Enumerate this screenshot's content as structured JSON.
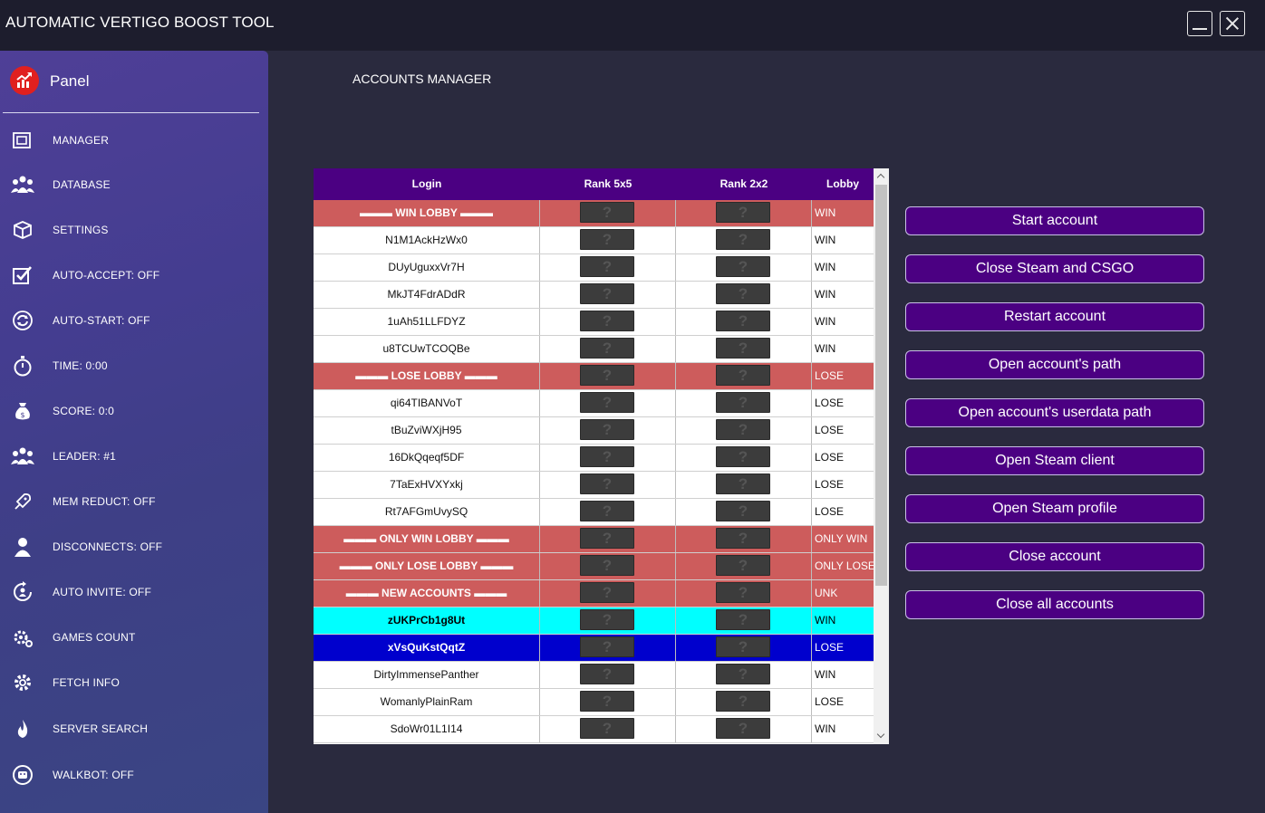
{
  "window": {
    "title": "AUTOMATIC VERTIGO BOOST TOOL",
    "minimize_icon": "minimize-icon",
    "close_icon": "close-icon"
  },
  "sidebar": {
    "panel_title": "Panel",
    "panel_icon": "chart-up-icon",
    "items": [
      {
        "label": "MANAGER",
        "icon": "windows-icon"
      },
      {
        "label": "DATABASE",
        "icon": "users-icon"
      },
      {
        "label": "SETTINGS",
        "icon": "box-icon"
      },
      {
        "label": "AUTO-ACCEPT: OFF",
        "icon": "check-square-icon"
      },
      {
        "label": "AUTO-START: OFF",
        "icon": "refresh-icon"
      },
      {
        "label": "TIME: 0:00",
        "icon": "stopwatch-icon"
      },
      {
        "label": "SCORE: 0:0",
        "icon": "money-bag-icon"
      },
      {
        "label": "LEADER: #1",
        "icon": "group-icon"
      },
      {
        "label": "MEM REDUCT: OFF",
        "icon": "rocket-icon"
      },
      {
        "label": "DISCONNECTS: OFF",
        "icon": "user-icon"
      },
      {
        "label": "AUTO INVITE: OFF",
        "icon": "invite-icon"
      },
      {
        "label": "GAMES COUNT",
        "icon": "gears-icon"
      },
      {
        "label": "FETCH INFO",
        "icon": "gear-icon"
      },
      {
        "label": "SERVER SEARCH",
        "icon": "flame-icon"
      },
      {
        "label": "WALKBOT: OFF",
        "icon": "robot-icon"
      }
    ]
  },
  "main": {
    "heading": "ACCOUNTS MANAGER"
  },
  "table": {
    "columns": [
      "Login",
      "Rank 5x5",
      "Rank 2x2",
      "Lobby"
    ],
    "rank_placeholder": "?",
    "rows": [
      {
        "login": "▬▬▬ WIN LOBBY ▬▬▬",
        "lobby": "WIN",
        "type": "header"
      },
      {
        "login": "N1M1AckHzWx0",
        "lobby": "WIN",
        "type": "normal"
      },
      {
        "login": "DUyUguxxVr7H",
        "lobby": "WIN",
        "type": "normal"
      },
      {
        "login": "MkJT4FdrADdR",
        "lobby": "WIN",
        "type": "normal"
      },
      {
        "login": "1uAh51LLFDYZ",
        "lobby": "WIN",
        "type": "normal"
      },
      {
        "login": "u8TCUwTCOQBe",
        "lobby": "WIN",
        "type": "normal"
      },
      {
        "login": "▬▬▬ LOSE LOBBY ▬▬▬",
        "lobby": "LOSE",
        "type": "header"
      },
      {
        "login": "qi64TIBANVoT",
        "lobby": "LOSE",
        "type": "normal"
      },
      {
        "login": "tBuZviWXjH95",
        "lobby": "LOSE",
        "type": "normal"
      },
      {
        "login": "16DkQqeqf5DF",
        "lobby": "LOSE",
        "type": "normal"
      },
      {
        "login": "7TaExHVXYxkj",
        "lobby": "LOSE",
        "type": "normal"
      },
      {
        "login": "Rt7AFGmUvySQ",
        "lobby": "LOSE",
        "type": "normal"
      },
      {
        "login": "▬▬▬ ONLY WIN LOBBY ▬▬▬",
        "lobby": "ONLY WIN",
        "type": "header"
      },
      {
        "login": "▬▬▬ ONLY LOSE LOBBY ▬▬▬",
        "lobby": "ONLY LOSE",
        "type": "header"
      },
      {
        "login": "▬▬▬ NEW ACCOUNTS ▬▬▬",
        "lobby": "UNK",
        "type": "header"
      },
      {
        "login": "zUKPrCb1g8Ut",
        "lobby": "WIN",
        "type": "cyan"
      },
      {
        "login": "xVsQuKstQqtZ",
        "lobby": "LOSE",
        "type": "blue"
      },
      {
        "login": "DirtyImmensePanther",
        "lobby": "WIN",
        "type": "normal"
      },
      {
        "login": "WomanlyPlainRam",
        "lobby": "LOSE",
        "type": "normal"
      },
      {
        "login": "SdoWr01L1I14",
        "lobby": "WIN",
        "type": "normal"
      }
    ]
  },
  "actions": [
    {
      "label": "Start account",
      "name": "start-account-button"
    },
    {
      "label": "Close Steam and CSGO",
      "name": "close-steam-csgo-button"
    },
    {
      "label": "Restart account",
      "name": "restart-account-button"
    },
    {
      "label": "Open account's path",
      "name": "open-account-path-button"
    },
    {
      "label": "Open account's userdata path",
      "name": "open-userdata-path-button"
    },
    {
      "label": "Open Steam client",
      "name": "open-steam-client-button"
    },
    {
      "label": "Open Steam profile",
      "name": "open-steam-profile-button"
    },
    {
      "label": "Close account",
      "name": "close-account-button"
    },
    {
      "label": "Close all accounts",
      "name": "close-all-accounts-button"
    }
  ],
  "colors": {
    "accent": "#4b0082",
    "header_row": "#cd5c5c",
    "cyan_row": "#00ffff",
    "blue_row": "#0000cd",
    "logo": "#e0201f"
  }
}
